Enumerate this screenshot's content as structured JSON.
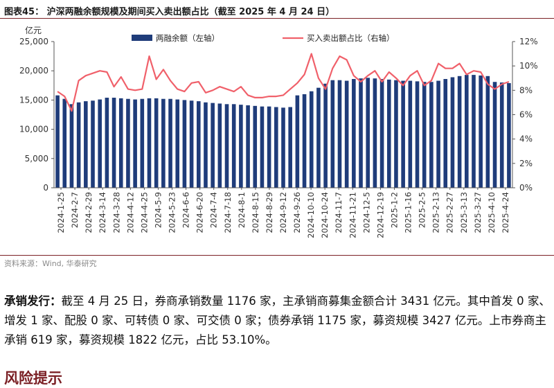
{
  "figure_title": "图表45： 沪深两融余额规模及期间买入卖出额占比（截至 2025 年 4 月 24 日）",
  "source": "资料来源：Wind, 华泰研究",
  "paragraph": {
    "lead": "承销发行：",
    "text": "截至 4 月 25 日，券商承销数量 1176 家，主承销商募集金额合计 3431 亿元。其中首发 0 家、增发 1 家、配股 0 家、可转债 0 家、可交债 0 家；债券承销 1175 家，募资规模 3427 亿元。上市券商主承销 619 家，募资规模 1822 亿元，占比 53.10%。"
  },
  "section_heading": "风险提示",
  "colors": {
    "bar": "#1f3c7a",
    "line": "#f0606a",
    "accent": "#7a1f24"
  },
  "chart_data": {
    "type": "bar+line",
    "left_unit": "亿元",
    "left_ylim": [
      0,
      25000
    ],
    "left_ticks": [
      "0",
      "5,000",
      "10,000",
      "15,000",
      "20,000",
      "25,000"
    ],
    "right_ylim": [
      0,
      12
    ],
    "right_ticks": [
      "0%",
      "2%",
      "4%",
      "6%",
      "8%",
      "10%",
      "12%"
    ],
    "legend": [
      "两融余额（左轴）",
      "买入卖出额占比（右轴）"
    ],
    "x_tick_labels": [
      "2024-1-25",
      "2024-2-7",
      "2024-2-29",
      "2024-3-14",
      "2024-3-28",
      "2024-4-12",
      "2024-4-25",
      "2024-5-9",
      "2024-5-23",
      "2024-6-6",
      "2024-6-20",
      "2024-7-4",
      "2024-7-18",
      "2024-8-1",
      "2024-8-15",
      "2024-8-29",
      "2024-9-12",
      "2024-9-26",
      "2024-10-10",
      "2024-10-24",
      "2024-11-7",
      "2024-11-21",
      "2024-12-5",
      "2024-12-19",
      "2025-1-2",
      "2025-1-16",
      "2025-2-5",
      "2025-2-13",
      "2025-2-27",
      "2025-3-13",
      "2025-3-27",
      "2025-4-10",
      "2025-4-24"
    ],
    "series": [
      {
        "name": "两融余额（左轴）",
        "axis": "left",
        "kind": "bar",
        "values": [
          15800,
          15200,
          14300,
          14600,
          14800,
          14900,
          15100,
          15400,
          15400,
          15300,
          15200,
          15100,
          15200,
          15300,
          15300,
          15200,
          15200,
          15100,
          15000,
          14900,
          14800,
          14600,
          14500,
          14400,
          14300,
          14300,
          14200,
          14100,
          14000,
          13900,
          13900,
          13800,
          13700,
          13800,
          15800,
          16000,
          16500,
          17100,
          17800,
          18400,
          18400,
          18300,
          18600,
          18700,
          18800,
          18700,
          18600,
          18500,
          18400,
          18300,
          18300,
          18200,
          18100,
          18100,
          18300,
          18600,
          18900,
          19100,
          19300,
          19300,
          19200,
          19100,
          18100,
          18000,
          17900
        ]
      },
      {
        "name": "买入卖出额占比（右轴）",
        "axis": "right",
        "kind": "line",
        "values": [
          7.9,
          7.5,
          6.3,
          8.8,
          9.2,
          9.4,
          9.6,
          9.5,
          8.3,
          9.1,
          8.1,
          8.0,
          8.1,
          10.8,
          8.9,
          9.7,
          8.8,
          8.1,
          7.9,
          8.6,
          8.7,
          7.8,
          8.0,
          8.3,
          8.1,
          7.9,
          8.3,
          7.6,
          7.4,
          7.4,
          7.5,
          7.5,
          7.6,
          8.1,
          8.6,
          9.3,
          11.0,
          9.0,
          8.1,
          9.8,
          10.8,
          10.5,
          9.2,
          8.7,
          9.2,
          9.6,
          8.7,
          9.5,
          9.0,
          8.4,
          9.2,
          9.6,
          8.4,
          8.8,
          10.2,
          9.8,
          9.8,
          10.2,
          9.3,
          9.6,
          9.5,
          8.5,
          8.1,
          8.5,
          8.7
        ]
      }
    ]
  }
}
